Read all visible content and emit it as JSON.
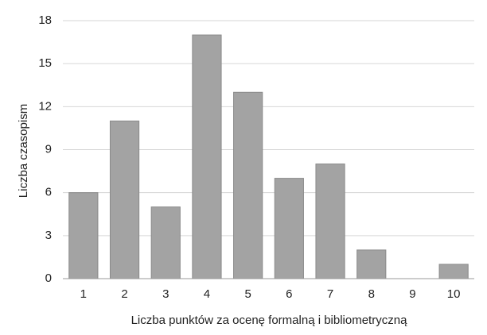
{
  "chart_data": {
    "type": "bar",
    "x_label": "Liczba punktów za ocenę formalną i bibliometryczną",
    "y_label": "Liczba czasopism",
    "categories": [
      "1",
      "2",
      "3",
      "4",
      "5",
      "6",
      "7",
      "8",
      "9",
      "10"
    ],
    "values": [
      6,
      11,
      5,
      17,
      13,
      7,
      8,
      2,
      0,
      1
    ],
    "color": "#a3a3a3",
    "ylim": [
      0,
      18
    ],
    "yticks": [
      0,
      3,
      6,
      9,
      12,
      15,
      18
    ],
    "grid": true
  }
}
